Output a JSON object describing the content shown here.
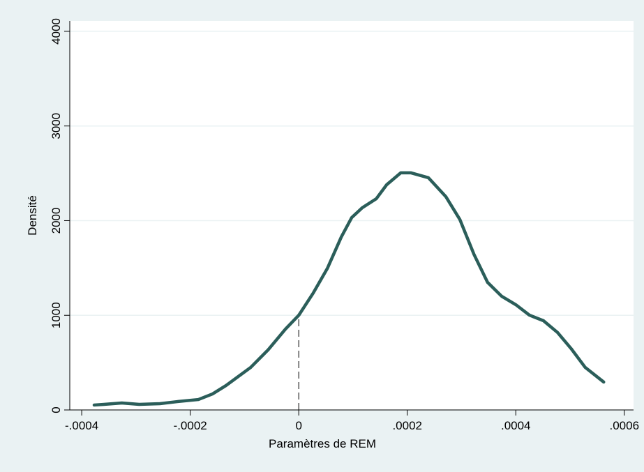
{
  "chart_data": {
    "type": "line",
    "xlabel": "Paramètres de REM",
    "ylabel": "Densité",
    "series": [
      {
        "color": "#2b5e5a",
        "x": [
          -0.000377,
          -0.000359,
          -0.000326,
          -0.000294,
          -0.000256,
          -0.000224,
          -0.000185,
          -0.000159,
          -0.000134,
          -0.000108,
          -8.87e-05,
          -5.66e-05,
          -2.44e-05,
          0,
          2.7e-05,
          5.27e-05,
          7.84e-05,
          9.77e-05,
          0.000117,
          0.000143,
          0.000162,
          0.000188,
          0.000207,
          0.000239,
          0.000271,
          0.000297,
          0.000323,
          0.000348,
          0.000374,
          0.0004,
          0.000425,
          0.000451,
          0.000477,
          0.000502,
          0.000528,
          0.000562
        ],
        "values": [
          52,
          59,
          74,
          59,
          66,
          88,
          110,
          169,
          258,
          368,
          449,
          634,
          855,
          1000,
          1238,
          1495,
          1827,
          2033,
          2136,
          2232,
          2379,
          2505,
          2505,
          2453,
          2254,
          2011,
          1643,
          1348,
          1201,
          1112,
          1002,
          943,
          818,
          648,
          449,
          295
        ]
      }
    ],
    "reference_line": {
      "x": 0,
      "y": 980
    },
    "xlim": [
      -0.000422,
      0.000617
    ],
    "ylim": [
      0,
      4110
    ],
    "xticks": [
      {
        "value": -0.0004,
        "label": "-.0004"
      },
      {
        "value": -0.0002,
        "label": "-.0002"
      },
      0,
      {
        "value": 0.0002,
        "label": ".0002"
      },
      {
        "value": 0.0004,
        "label": ".0004"
      },
      {
        "value": 0.0006,
        "label": ".0006"
      }
    ],
    "yticks": [
      0,
      1000,
      2000,
      3000,
      4000
    ],
    "grid": true
  }
}
